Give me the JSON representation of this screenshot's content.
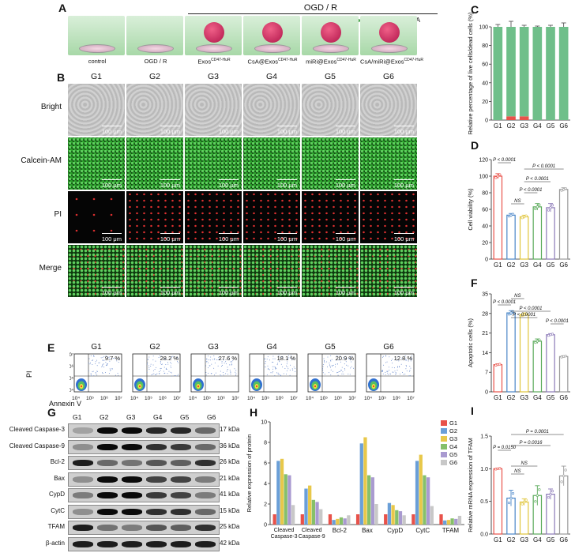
{
  "panels": {
    "A": "A",
    "B": "B",
    "C": "C",
    "D": "D",
    "E": "E",
    "F": "F",
    "G": "G",
    "H": "H",
    "I": "I"
  },
  "panelA": {
    "header": "OGD / R",
    "legend": [
      {
        "dot": "#e69a24",
        "text": "CsA"
      },
      {
        "dot": "#49a24b",
        "text": "miRi"
      },
      {
        "dot": "#49a24b",
        "text": "miRi"
      },
      {
        "dot": "#e69a24",
        "text": "CsA"
      }
    ],
    "conditions": [
      "control",
      "OGD / R",
      "Exos",
      "CsA@Exos",
      "miRi@Exos",
      "CsA/miRi@Exos"
    ],
    "superscript": "CD47-HuR"
  },
  "groups": [
    "G1",
    "G2",
    "G3",
    "G4",
    "G5",
    "G6"
  ],
  "panelB": {
    "rows": [
      "Bright",
      "Calcein-AM",
      "PI",
      "Merge"
    ],
    "scale": "100 μm"
  },
  "panelE": {
    "percents": [
      "9.7 %",
      "28.2 %",
      "27.6 %",
      "18.1 %",
      "20.9 %",
      "12.8 %"
    ],
    "xlabel": "Annexin V",
    "ylabel": "PI",
    "xticks": [
      "10⁴",
      "10⁵",
      "10⁶",
      "10⁷"
    ],
    "yticks": [
      "10⁴",
      "10⁵",
      "10⁶",
      "10⁷"
    ]
  },
  "panelG": {
    "proteins": [
      "Cleaved Caspase-3",
      "Cleaved Caspase-9",
      "Bcl-2",
      "Bax",
      "CypD",
      "CytC",
      "TFAM",
      "β-actin"
    ],
    "kda": [
      "17 kDa",
      "36 kDa",
      "26 kDa",
      "21 kDa",
      "41 kDa",
      "15 kDa",
      "25 kDa",
      "42 kDa"
    ]
  },
  "chart_data": [
    {
      "id": "C",
      "type": "bar",
      "ylabel": "Relative percentage of live cells/dead cells (%)",
      "categories": [
        "G1",
        "G2",
        "G3",
        "G4",
        "G5",
        "G6"
      ],
      "series": [
        {
          "values": [
            100,
            96,
            96,
            100,
            100,
            100
          ],
          "color": "#6fbf8a"
        },
        {
          "values": [
            0,
            4,
            4,
            0,
            0,
            0
          ],
          "color": "#e8524a"
        }
      ],
      "errors": [
        3,
        7,
        2,
        1,
        2,
        5
      ],
      "ylim": [
        0,
        100
      ],
      "yticks": [
        0,
        20,
        40,
        60,
        80,
        100
      ]
    },
    {
      "id": "D",
      "type": "bar",
      "ylabel": "Cell viability (%)",
      "categories": [
        "G1",
        "G2",
        "G3",
        "G4",
        "G5",
        "G6"
      ],
      "values": [
        100,
        53,
        51,
        63,
        62,
        84
      ],
      "errors": [
        3,
        2,
        2,
        4,
        5,
        2
      ],
      "colors": [
        "#e8524a",
        "#4a86c8",
        "#e0c53a",
        "#5aaa5a",
        "#8c7ab8",
        "#9a9a9a"
      ],
      "ylim": [
        0,
        120
      ],
      "yticks": [
        0,
        20,
        40,
        60,
        80,
        100,
        120
      ],
      "annotations": [
        "P < 0.0001",
        "NS",
        "P < 0.0001",
        "P < 0.0001",
        "P < 0.0001"
      ]
    },
    {
      "id": "F",
      "type": "bar",
      "ylabel": "Apoptotic cells (%)",
      "categories": [
        "G1",
        "G2",
        "G3",
        "G4",
        "G5",
        "G6"
      ],
      "values": [
        9.7,
        28.2,
        27.6,
        18.1,
        20.4,
        12.6
      ],
      "errors": [
        0.3,
        0.8,
        0.6,
        0.8,
        0.4,
        0.3
      ],
      "colors": [
        "#e8524a",
        "#4a86c8",
        "#e0c53a",
        "#5aaa5a",
        "#8c7ab8",
        "#9a9a9a"
      ],
      "ylim": [
        0,
        35
      ],
      "yticks": [
        0,
        7,
        14,
        21,
        28,
        35
      ],
      "annotations": [
        "NS",
        "P < 0.0001",
        "P < 0.0001",
        "P < 0.0001",
        "P < 0.0001"
      ]
    },
    {
      "id": "H",
      "type": "bar",
      "ylabel": "Relative expression of protein",
      "categories": [
        "Cleaved Caspase-3",
        "Cleaved Caspase-9",
        "Bcl-2",
        "Bax",
        "CypD",
        "CytC",
        "TFAM"
      ],
      "series": [
        {
          "name": "G1",
          "values": [
            1,
            1,
            1,
            1,
            1,
            1,
            1
          ],
          "color": "#e8524a"
        },
        {
          "name": "G2",
          "values": [
            6.2,
            3.5,
            0.45,
            7.9,
            2.1,
            6.2,
            0.4
          ],
          "color": "#6a9fd8"
        },
        {
          "name": "G3",
          "values": [
            6.4,
            3.8,
            0.55,
            8.5,
            1.9,
            6.8,
            0.45
          ],
          "color": "#e8c84a"
        },
        {
          "name": "G4",
          "values": [
            4.9,
            2.4,
            0.7,
            4.8,
            1.4,
            4.8,
            0.6
          ],
          "color": "#86c06a"
        },
        {
          "name": "G5",
          "values": [
            4.8,
            2.2,
            0.6,
            4.6,
            1.3,
            4.6,
            0.55
          ],
          "color": "#a99ad0"
        },
        {
          "name": "G6",
          "values": [
            1.9,
            1.5,
            0.9,
            2.0,
            0.9,
            1.8,
            0.85
          ],
          "color": "#c8c8c8"
        }
      ],
      "ylim": [
        0,
        10
      ],
      "yticks": [
        0,
        2,
        4,
        6,
        8,
        10
      ],
      "legend_position": "top-right"
    },
    {
      "id": "I",
      "type": "bar",
      "ylabel": "Relative mRNA expression of TFAM",
      "categories": [
        "G1",
        "G2",
        "G3",
        "G4",
        "G5",
        "G6"
      ],
      "values": [
        1.0,
        0.55,
        0.49,
        0.59,
        0.61,
        0.89
      ],
      "errors": [
        0.01,
        0.12,
        0.05,
        0.15,
        0.08,
        0.15
      ],
      "colors": [
        "#e8524a",
        "#4a86c8",
        "#e0c53a",
        "#5aaa5a",
        "#8c7ab8",
        "#9a9a9a"
      ],
      "ylim": [
        0,
        1.5
      ],
      "yticks": [
        "0.0",
        "0.5",
        "1.0",
        "1.5"
      ],
      "annotations": [
        "P = 0.0150",
        "NS",
        "NS",
        "P = 0.0016",
        "P = 0.0001"
      ]
    }
  ]
}
